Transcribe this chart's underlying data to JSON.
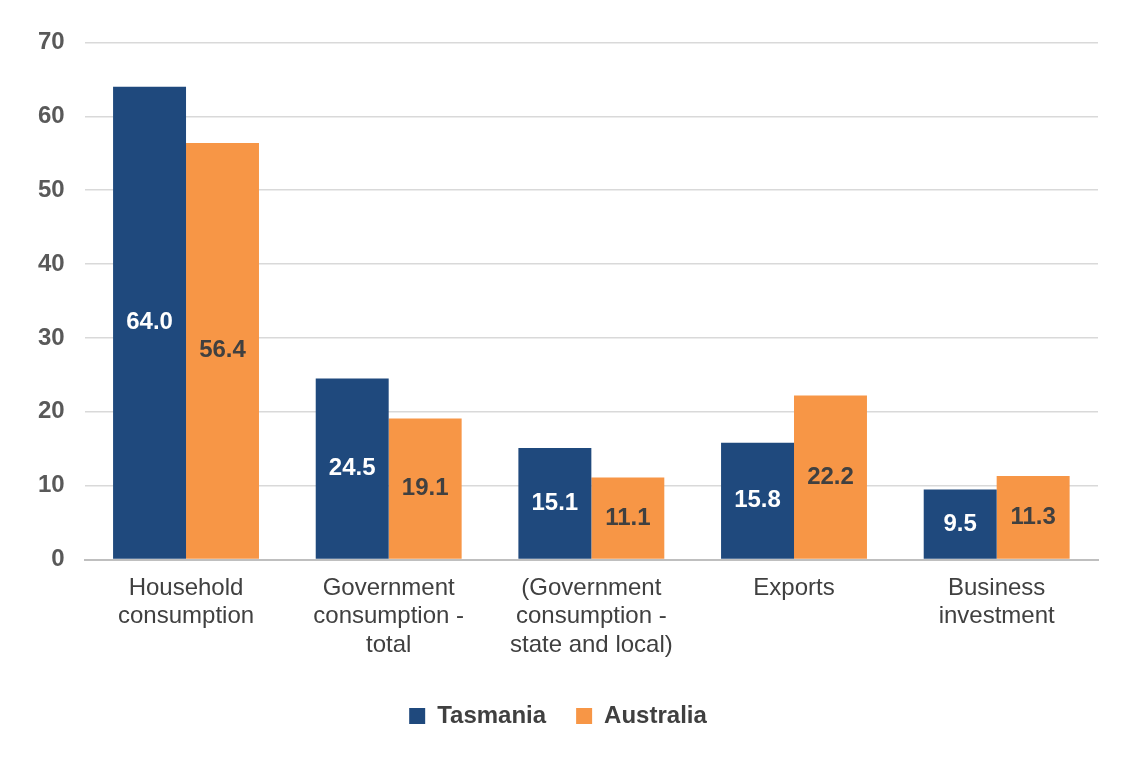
{
  "chart_data": {
    "type": "bar",
    "categories": [
      "Household consumption",
      "Government consumption - total",
      "(Government consumption - state and local)",
      "Exports",
      "Business investment"
    ],
    "series": [
      {
        "name": "Tasmania",
        "color": "#1f497d",
        "values": [
          64.0,
          24.5,
          15.1,
          15.8,
          9.5
        ],
        "value_labels": [
          "64.0",
          "24.5",
          "15.1",
          "15.8",
          "9.5"
        ]
      },
      {
        "name": "Australia",
        "color": "#f79646",
        "values": [
          56.4,
          19.1,
          11.1,
          22.2,
          11.3
        ],
        "value_labels": [
          "56.4",
          "19.1",
          "11.1",
          "22.2",
          "11.3"
        ]
      }
    ],
    "ylim": [
      0,
      70
    ],
    "yticks": [
      0,
      10,
      20,
      30,
      40,
      50,
      60,
      70
    ],
    "grid": "y",
    "legend": "bottom"
  }
}
